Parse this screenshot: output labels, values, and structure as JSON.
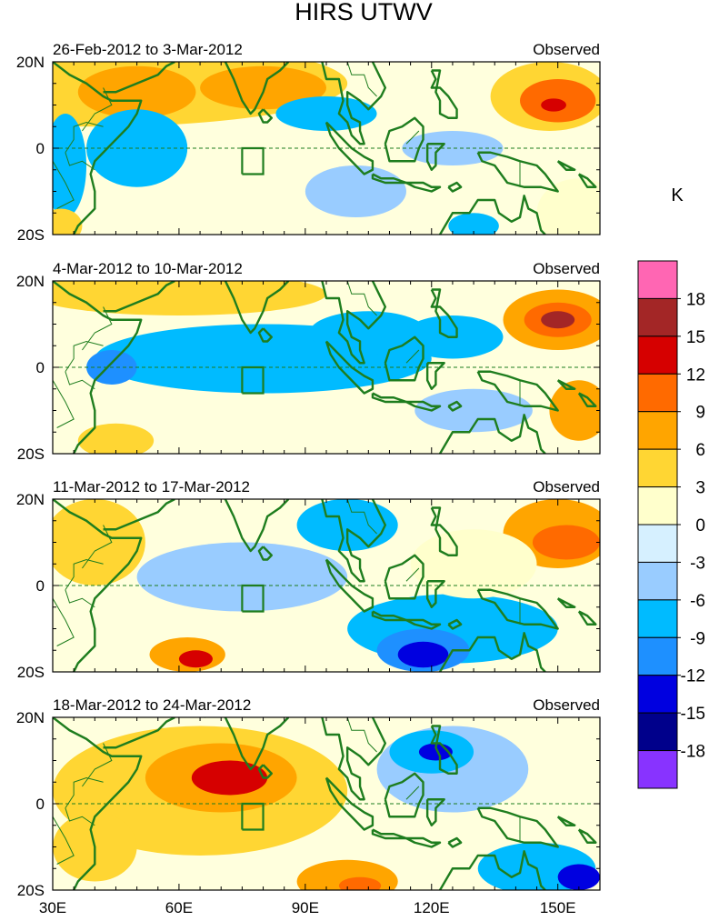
{
  "title": "HIRS UTWV",
  "panels": [
    {
      "period": "26-Feb-2012 to 3-Mar-2012",
      "label": "Observed",
      "blobs": [
        {
          "cx": 40,
          "cy": 15,
          "rx": 60,
          "ry": 10,
          "v": 6
        },
        {
          "cx": 50,
          "cy": 13,
          "rx": 14,
          "ry": 6,
          "v": 9
        },
        {
          "cx": 80,
          "cy": 14,
          "rx": 15,
          "ry": 5,
          "v": 9
        },
        {
          "cx": 148,
          "cy": 12,
          "rx": 14,
          "ry": 8,
          "v": 6
        },
        {
          "cx": 150,
          "cy": 11,
          "rx": 9,
          "ry": 5,
          "v": 10
        },
        {
          "cx": 149,
          "cy": 10,
          "rx": 3,
          "ry": 1.5,
          "v": 15
        },
        {
          "cx": 50,
          "cy": 0,
          "rx": 12,
          "ry": 9,
          "v": -7
        },
        {
          "cx": 33,
          "cy": -4,
          "rx": 5,
          "ry": 12,
          "v": -8
        },
        {
          "cx": 95,
          "cy": 8,
          "rx": 12,
          "ry": 4,
          "v": -8
        },
        {
          "cx": 125,
          "cy": 0,
          "rx": 12,
          "ry": 4,
          "v": -4
        },
        {
          "cx": 130,
          "cy": -18,
          "rx": 6,
          "ry": 3,
          "v": -8
        },
        {
          "cx": 102,
          "cy": -10,
          "rx": 12,
          "ry": 6,
          "v": -4
        },
        {
          "cx": 155,
          "cy": -15,
          "rx": 10,
          "ry": 8,
          "v": 2
        },
        {
          "cx": 32,
          "cy": -18,
          "rx": 5,
          "ry": 4,
          "v": 6
        }
      ]
    },
    {
      "period": "4-Mar-2012 to 10-Mar-2012",
      "label": "Observed",
      "blobs": [
        {
          "cx": 60,
          "cy": 17,
          "rx": 35,
          "ry": 5,
          "v": 5
        },
        {
          "cx": 150,
          "cy": 11,
          "rx": 13,
          "ry": 7,
          "v": 9
        },
        {
          "cx": 150,
          "cy": 11,
          "rx": 8,
          "ry": 4,
          "v": 12
        },
        {
          "cx": 150,
          "cy": 11,
          "rx": 4,
          "ry": 2,
          "v": 16
        },
        {
          "cx": 80,
          "cy": 2,
          "rx": 40,
          "ry": 8,
          "v": -7
        },
        {
          "cx": 105,
          "cy": 8,
          "rx": 14,
          "ry": 5,
          "v": -7
        },
        {
          "cx": 125,
          "cy": 7,
          "rx": 12,
          "ry": 5,
          "v": -7
        },
        {
          "cx": 44,
          "cy": 0,
          "rx": 6,
          "ry": 4,
          "v": -10
        },
        {
          "cx": 130,
          "cy": -10,
          "rx": 14,
          "ry": 5,
          "v": -4
        },
        {
          "cx": 155,
          "cy": -10,
          "rx": 7,
          "ry": 7,
          "v": 8
        },
        {
          "cx": 45,
          "cy": -17,
          "rx": 9,
          "ry": 4,
          "v": 6
        }
      ]
    },
    {
      "period": "11-Mar-2012 to 17-Mar-2012",
      "label": "Observed",
      "blobs": [
        {
          "cx": 40,
          "cy": 10,
          "rx": 12,
          "ry": 10,
          "v": 6
        },
        {
          "cx": 150,
          "cy": 12,
          "rx": 13,
          "ry": 8,
          "v": 7
        },
        {
          "cx": 152,
          "cy": 10,
          "rx": 8,
          "ry": 4,
          "v": 11
        },
        {
          "cx": 75,
          "cy": 2,
          "rx": 25,
          "ry": 8,
          "v": -4
        },
        {
          "cx": 100,
          "cy": 14,
          "rx": 12,
          "ry": 6,
          "v": -8
        },
        {
          "cx": 125,
          "cy": -10,
          "rx": 25,
          "ry": 8,
          "v": -7
        },
        {
          "cx": 118,
          "cy": -15,
          "rx": 11,
          "ry": 5,
          "v": -11
        },
        {
          "cx": 118,
          "cy": -16,
          "rx": 6,
          "ry": 3,
          "v": -14
        },
        {
          "cx": 62,
          "cy": -16,
          "rx": 9,
          "ry": 4,
          "v": 9
        },
        {
          "cx": 64,
          "cy": -17,
          "rx": 4,
          "ry": 2,
          "v": 14
        },
        {
          "cx": 130,
          "cy": 5,
          "rx": 15,
          "ry": 8,
          "v": 2
        }
      ]
    },
    {
      "period": "18-Mar-2012 to 24-Mar-2012",
      "label": "Observed",
      "blobs": [
        {
          "cx": 65,
          "cy": 3,
          "rx": 35,
          "ry": 15,
          "v": 5
        },
        {
          "cx": 70,
          "cy": 6,
          "rx": 18,
          "ry": 8,
          "v": 9
        },
        {
          "cx": 72,
          "cy": 6,
          "rx": 9,
          "ry": 4,
          "v": 13
        },
        {
          "cx": 125,
          "cy": 8,
          "rx": 18,
          "ry": 10,
          "v": -4
        },
        {
          "cx": 120,
          "cy": 12,
          "rx": 10,
          "ry": 5,
          "v": -8
        },
        {
          "cx": 121,
          "cy": 12,
          "rx": 4,
          "ry": 2,
          "v": -13
        },
        {
          "cx": 145,
          "cy": -15,
          "rx": 14,
          "ry": 6,
          "v": -7
        },
        {
          "cx": 155,
          "cy": -17,
          "rx": 5,
          "ry": 3,
          "v": -13
        },
        {
          "cx": 100,
          "cy": -18,
          "rx": 12,
          "ry": 5,
          "v": 7
        },
        {
          "cx": 103,
          "cy": -19,
          "rx": 5,
          "ry": 2,
          "v": 12
        },
        {
          "cx": 40,
          "cy": -10,
          "rx": 10,
          "ry": 8,
          "v": 4
        }
      ]
    }
  ],
  "axes": {
    "lon_ticks": [
      30,
      60,
      90,
      120,
      150
    ],
    "lon_labels": [
      "30E",
      "60E",
      "90E",
      "120E",
      "150E"
    ],
    "lat_labels": [
      "20N",
      "0",
      "20S"
    ],
    "lon_range": [
      30,
      160
    ],
    "lat_range": [
      -20,
      20
    ]
  },
  "colorbar": {
    "unit": "K",
    "levels": [
      "18",
      "15",
      "12",
      "9",
      "6",
      "3",
      "0",
      "-3",
      "-6",
      "-9",
      "-12",
      "-15",
      "-18"
    ],
    "colors": [
      "#ff66b3",
      "#a32626",
      "#d60000",
      "#ff6a00",
      "#ffa500",
      "#ffd633",
      "#ffffcc",
      "#d6f0ff",
      "#99ccff",
      "#00bbff",
      "#1e90ff",
      "#0000e0",
      "#00008b",
      "#8833ff"
    ]
  },
  "styles": {
    "coast_color": "#1e7d1e",
    "background_color": "#ffffdd"
  }
}
